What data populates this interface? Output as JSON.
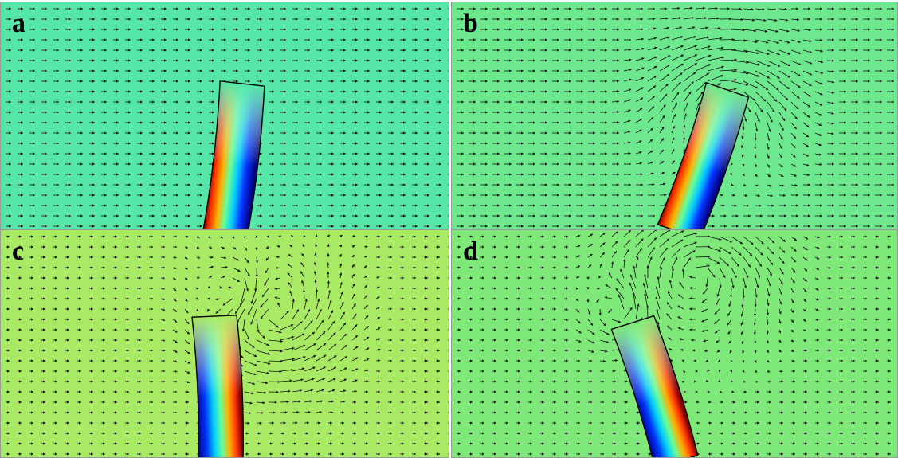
{
  "figure": {
    "panels": [
      {
        "id": "a",
        "label": "a",
        "background": "#56e6a8"
      },
      {
        "id": "b",
        "label": "b",
        "background": "#6de88e"
      },
      {
        "id": "c",
        "label": "c",
        "background": "#a9ea64"
      },
      {
        "id": "d",
        "label": "d",
        "background": "#7ee878"
      }
    ],
    "colors": {
      "arrow": "#111111",
      "outline": "#000000",
      "colormap": [
        "#00007f",
        "#0033ff",
        "#00ccff",
        "#66ff99",
        "#e6ff33",
        "#ffb000",
        "#ff3300",
        "#7f0000"
      ]
    }
  }
}
